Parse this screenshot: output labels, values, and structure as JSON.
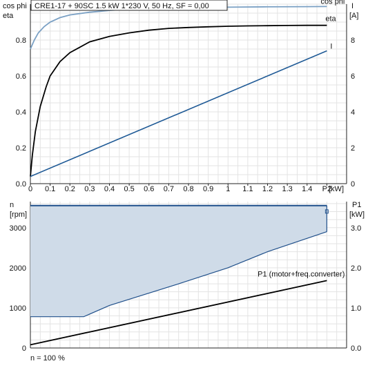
{
  "colors": {
    "cosphi": "#7aa0c4",
    "eta": "#000000",
    "current": "#1f5a96",
    "speed_line": "#1f4f8a",
    "speed_fill": "#cfdbe8",
    "power": "#000000",
    "grid": "#e3e3e3"
  },
  "chart_data": [
    {
      "type": "line",
      "title": "CRE1-17 + 90SC   1.5 kW   1*230 V, 50 Hz, SF = 0,00",
      "xlabel": "P2 [kW]",
      "x_ticks": [
        "0",
        "0.1",
        "0.2",
        "0.3",
        "0.4",
        "0.5",
        "0.6",
        "0.7",
        "0.8",
        "0.9",
        "1",
        "1.1",
        "1.2",
        "1.3",
        "1.4",
        "P2"
      ],
      "x_unit_label": "[kW]",
      "xlim": [
        0,
        1.6
      ],
      "y_left_label": [
        "cos phi",
        "eta"
      ],
      "y_left_ticks": [
        "0.0",
        "0.2",
        "0.4",
        "0.6",
        "0.8"
      ],
      "y_left_lim": [
        0,
        1.0
      ],
      "y_right_label": [
        "I",
        "[A]"
      ],
      "y_right_ticks": [
        "0",
        "2",
        "4",
        "6",
        "8"
      ],
      "y_right_lim": [
        0,
        10
      ],
      "grid": true,
      "series": [
        {
          "name": "cos phi",
          "axis": "left",
          "color_key": "cosphi",
          "points": [
            [
              0.0,
              0.75
            ],
            [
              0.02,
              0.8
            ],
            [
              0.04,
              0.84
            ],
            [
              0.07,
              0.875
            ],
            [
              0.1,
              0.9
            ],
            [
              0.15,
              0.925
            ],
            [
              0.2,
              0.94
            ],
            [
              0.3,
              0.955
            ],
            [
              0.4,
              0.965
            ],
            [
              0.5,
              0.972
            ],
            [
              0.6,
              0.976
            ],
            [
              0.8,
              0.98
            ],
            [
              1.0,
              0.983
            ],
            [
              1.2,
              0.985
            ],
            [
              1.4,
              0.986
            ],
            [
              1.5,
              0.987
            ]
          ]
        },
        {
          "name": "eta",
          "axis": "left",
          "color_key": "eta",
          "points": [
            [
              0.0,
              0.04
            ],
            [
              0.01,
              0.16
            ],
            [
              0.025,
              0.29
            ],
            [
              0.05,
              0.43
            ],
            [
              0.08,
              0.54
            ],
            [
              0.1,
              0.6
            ],
            [
              0.15,
              0.68
            ],
            [
              0.2,
              0.73
            ],
            [
              0.25,
              0.76
            ],
            [
              0.3,
              0.79
            ],
            [
              0.4,
              0.82
            ],
            [
              0.5,
              0.84
            ],
            [
              0.6,
              0.855
            ],
            [
              0.7,
              0.865
            ],
            [
              0.8,
              0.87
            ],
            [
              0.9,
              0.874
            ],
            [
              1.0,
              0.877
            ],
            [
              1.1,
              0.879
            ],
            [
              1.2,
              0.88
            ],
            [
              1.3,
              0.881
            ],
            [
              1.4,
              0.882
            ],
            [
              1.5,
              0.882
            ]
          ]
        },
        {
          "name": "I",
          "axis": "right",
          "color_key": "current",
          "points": [
            [
              0.0,
              0.4
            ],
            [
              1.5,
              7.4
            ]
          ]
        }
      ]
    },
    {
      "type": "area",
      "xlim": [
        0,
        1.6
      ],
      "y_left_label": [
        "n",
        "[rpm]"
      ],
      "y_left_ticks": [
        "0",
        "1000",
        "2000",
        "3000"
      ],
      "y_left_lim": [
        0,
        3650
      ],
      "y_right_label": [
        "P1",
        "[kW]"
      ],
      "y_right_ticks": [
        "0.0",
        "1.0",
        "2.0",
        "3.0"
      ],
      "y_right_lim": [
        0,
        3.65
      ],
      "grid": true,
      "note": "n = 100 %",
      "series": [
        {
          "name": "n",
          "axis": "left",
          "color_key": "speed_line",
          "upper": [
            [
              0.0,
              3550
            ],
            [
              1.5,
              3550
            ]
          ],
          "lower": [
            [
              0.0,
              780
            ],
            [
              0.27,
              780
            ],
            [
              0.4,
              1060
            ],
            [
              0.75,
              1600
            ],
            [
              1.0,
              2000
            ],
            [
              1.2,
              2400
            ],
            [
              1.5,
              2900
            ]
          ]
        },
        {
          "name": "P1 (motor+freq.converter)",
          "axis": "right",
          "color_key": "power",
          "points": [
            [
              0.0,
              0.08
            ],
            [
              1.5,
              1.68
            ]
          ]
        }
      ]
    }
  ]
}
